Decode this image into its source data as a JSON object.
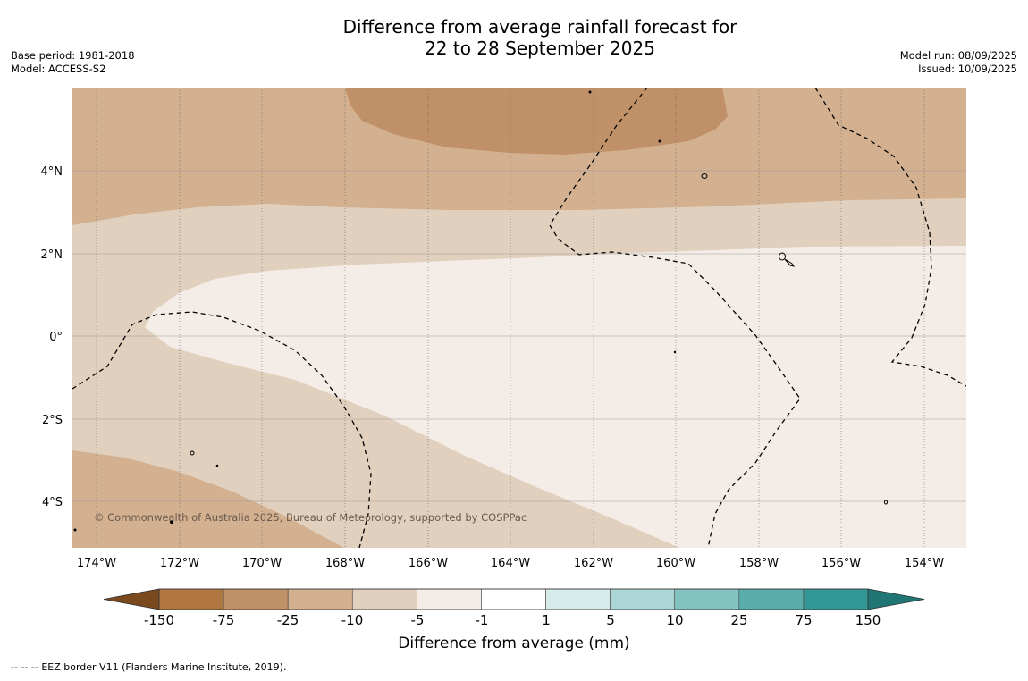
{
  "title": {
    "line1": "Difference from average rainfall forecast for",
    "line2": "22 to 28 September 2025"
  },
  "meta_left": {
    "base_period": "Base period: 1981-2018",
    "model": "Model: ACCESS-S2"
  },
  "meta_right": {
    "model_run": "Model run: 08/09/2025",
    "issued": "Issued: 10/09/2025"
  },
  "map": {
    "lat_labels": [
      "4°N",
      "2°N",
      "0°",
      "2°S",
      "4°S"
    ],
    "lon_labels": [
      "174°W",
      "172°W",
      "170°W",
      "168°W",
      "166°W",
      "164°W",
      "162°W",
      "160°W",
      "158°W",
      "156°W",
      "154°W"
    ],
    "copyright": "© Commonwealth of Australia 2025, Bureau of Meteorology, supported by COSPPac"
  },
  "colorbar": {
    "label": "Difference from average (mm)",
    "ticks": [
      "-150",
      "-75",
      "-25",
      "-10",
      "-5",
      "-1",
      "1",
      "5",
      "10",
      "25",
      "75",
      "150"
    ],
    "colors": {
      "lt_minus150": "#7a4a1e",
      "minus150_to_minus75": "#b07840",
      "minus75_to_minus25": "#c09068",
      "minus25_to_minus10": "#d2b090",
      "minus10_to_minus5": "#e2d0be",
      "minus5_to_minus1": "#f4ece6",
      "minus1_to_1": "#ffffff",
      "1_to_5": "#d6eceb",
      "5_to_10": "#acd6d5",
      "10_to_25": "#82c2c0",
      "25_to_75": "#5aadab",
      "75_to_150": "#339895",
      "gt_150": "#1f7675"
    }
  },
  "footer": {
    "legend_symbol": "-- -- --",
    "legend_text": "EEZ border V11 (Flanders Marine Institute, 2019)."
  }
}
